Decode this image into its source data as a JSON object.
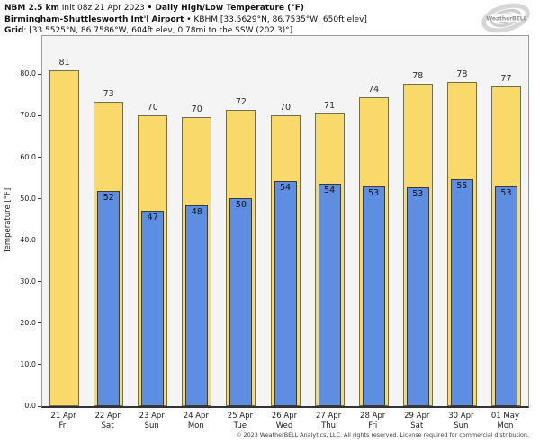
{
  "header": {
    "line1": {
      "bold1": "NBM 2.5 km",
      "regular": " Init 08z 21 Apr 2023 ",
      "bold2": "• Daily High/Low Temperature (°F)"
    },
    "line2": {
      "bold": "Birmingham-Shuttlesworth Int'l Airport",
      "regular": " • KBHM [33.5629°N, 86.7535°W, 650ft elev]"
    },
    "line3": {
      "bold": "Grid",
      "regular": ": [33.5525°N, 86.7586°W, 604ft elev, 0.78mi to the SSW (202.3)°]"
    }
  },
  "logo": {
    "label": "WeatherBELL"
  },
  "chart_data": {
    "type": "bar",
    "title": "Daily High/Low Temperature (°F)",
    "ylabel": "Temperature [°F]",
    "ylim": [
      0,
      89.2
    ],
    "grid": false,
    "legend_position": "none",
    "plot_bg": "#f4f4f4",
    "yticks": [
      0,
      10,
      20,
      30,
      40,
      50,
      60,
      70,
      80
    ],
    "ytick_labels": [
      "0.0",
      "10.0",
      "20.0",
      "30.0",
      "40.0",
      "50.0",
      "60.0",
      "70.0",
      "80.0"
    ],
    "categories": [
      {
        "date": "21 Apr",
        "day": "Fri"
      },
      {
        "date": "22 Apr",
        "day": "Sat"
      },
      {
        "date": "23 Apr",
        "day": "Sun"
      },
      {
        "date": "24 Apr",
        "day": "Mon"
      },
      {
        "date": "25 Apr",
        "day": "Tue"
      },
      {
        "date": "26 Apr",
        "day": "Wed"
      },
      {
        "date": "27 Apr",
        "day": "Thu"
      },
      {
        "date": "28 Apr",
        "day": "Fri"
      },
      {
        "date": "29 Apr",
        "day": "Sat"
      },
      {
        "date": "30 Apr",
        "day": "Sun"
      },
      {
        "date": "01 May",
        "day": "Mon"
      }
    ],
    "series": [
      {
        "name": "High",
        "color": "#fad96b",
        "labels": [
          81,
          73,
          70,
          70,
          72,
          70,
          71,
          74,
          78,
          78,
          77
        ],
        "heights": [
          81.0,
          73.3,
          70.2,
          69.6,
          71.5,
          70.2,
          70.6,
          74.4,
          77.8,
          78.2,
          77.1
        ]
      },
      {
        "name": "Low",
        "color": "#5d8ee2",
        "labels": [
          null,
          52,
          47,
          48,
          50,
          54,
          54,
          53,
          53,
          55,
          53
        ],
        "heights": [
          null,
          51.9,
          47.2,
          48.3,
          50.1,
          54.2,
          53.6,
          53.0,
          52.8,
          54.6,
          53.0
        ]
      }
    ]
  },
  "footer": "© 2023 WeatherBELL Analytics, LLC. All rights reserved. License required for commercial distribution."
}
